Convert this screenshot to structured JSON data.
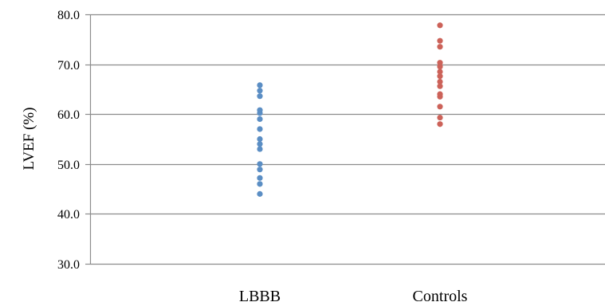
{
  "chart_data": {
    "type": "scatter",
    "ylabel": "LVEF (%)",
    "ylim": [
      30,
      80
    ],
    "y_ticks": [
      30,
      40,
      50,
      60,
      70,
      80
    ],
    "y_tick_labels": [
      "30.0",
      "40.0",
      "50.0",
      "60.0",
      "70.0",
      "80.0"
    ],
    "categories": [
      "LBBB",
      "Controls"
    ],
    "grid": true,
    "series": [
      {
        "category": "LBBB",
        "color": "#5b8ec4",
        "values": [
          65.8,
          64.7,
          63.6,
          60.8,
          60.2,
          59.0,
          57.0,
          55.0,
          54.0,
          53.0,
          50.0,
          48.9,
          47.2,
          46.0,
          44.0
        ]
      },
      {
        "category": "Controls",
        "color": "#cc6259",
        "values": [
          77.8,
          74.7,
          73.5,
          70.3,
          69.5,
          68.5,
          67.6,
          66.5,
          65.6,
          64.0,
          63.5,
          61.5,
          59.3,
          58.0
        ]
      }
    ]
  }
}
